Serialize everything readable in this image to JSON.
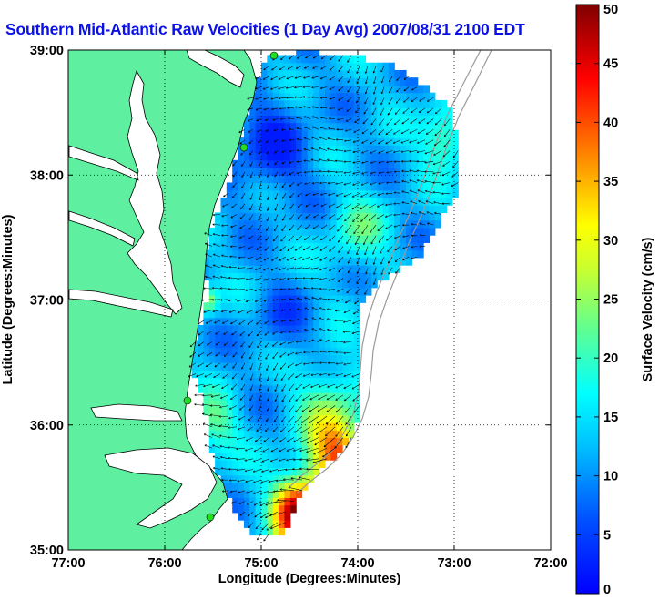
{
  "title": "Southern Mid-Atlantic Raw Velocities (1 Day Avg) 2007/08/31 2100 EDT",
  "xlabel": "Longitude (Degrees:Minutes)",
  "ylabel": "Latitude (Degrees:Minutes)",
  "colorbar_label": "Surface Velocity (cm/s)",
  "x_ticks": [
    "77:00",
    "76:00",
    "75:00",
    "74:00",
    "73:00",
    "72:00"
  ],
  "y_ticks": [
    "39:00",
    "38:00",
    "37:00",
    "36:00",
    "35:00"
  ],
  "colorbar_ticks": [
    "50",
    "45",
    "40",
    "35",
    "30",
    "25",
    "20",
    "15",
    "10",
    "5",
    "0"
  ],
  "colors": {
    "title": "#0a10e8",
    "land": "#5ef0a0",
    "water_background": "#ffffff",
    "site_marker": "#22dd22"
  },
  "chart_data": {
    "type": "heatmap",
    "title": "Southern Mid-Atlantic Raw Velocities (1 Day Avg) 2007/08/31 2100 EDT",
    "xlabel": "Longitude (Degrees:Minutes)",
    "ylabel": "Latitude (Degrees:Minutes)",
    "xlim": [
      -77.0,
      -72.0
    ],
    "ylim": [
      35.0,
      39.0
    ],
    "color_range": [
      0,
      50
    ],
    "color_units": "cm/s",
    "colormap": "jet",
    "grid": true,
    "colorbar_placement": "right"
  }
}
